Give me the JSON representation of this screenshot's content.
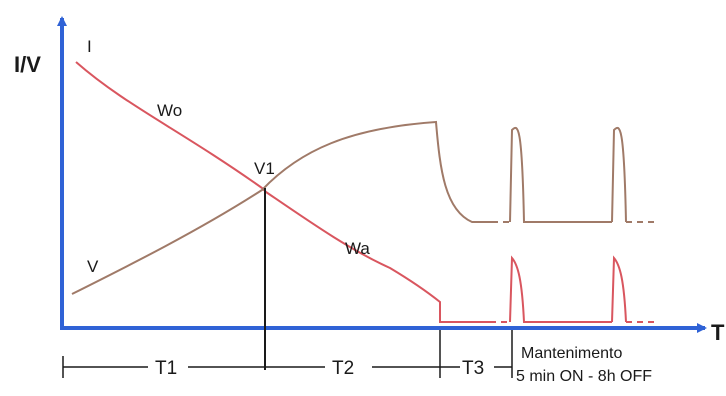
{
  "diagram": {
    "y_axis_label": "I/V",
    "x_axis_label": "T",
    "labels": {
      "current": "I",
      "voltage": "V",
      "wo": "Wo",
      "wa": "Wa",
      "v1": "V1"
    },
    "phases": [
      "T1",
      "T2",
      "T3"
    ],
    "maintenance": {
      "line1": "Mantenimento",
      "line2": "5 min ON - 8h OFF"
    },
    "colors": {
      "axis": "#2f62d6",
      "current": "#d9565f",
      "voltage": "#a07a68",
      "guide": "#1a1a1a"
    }
  }
}
